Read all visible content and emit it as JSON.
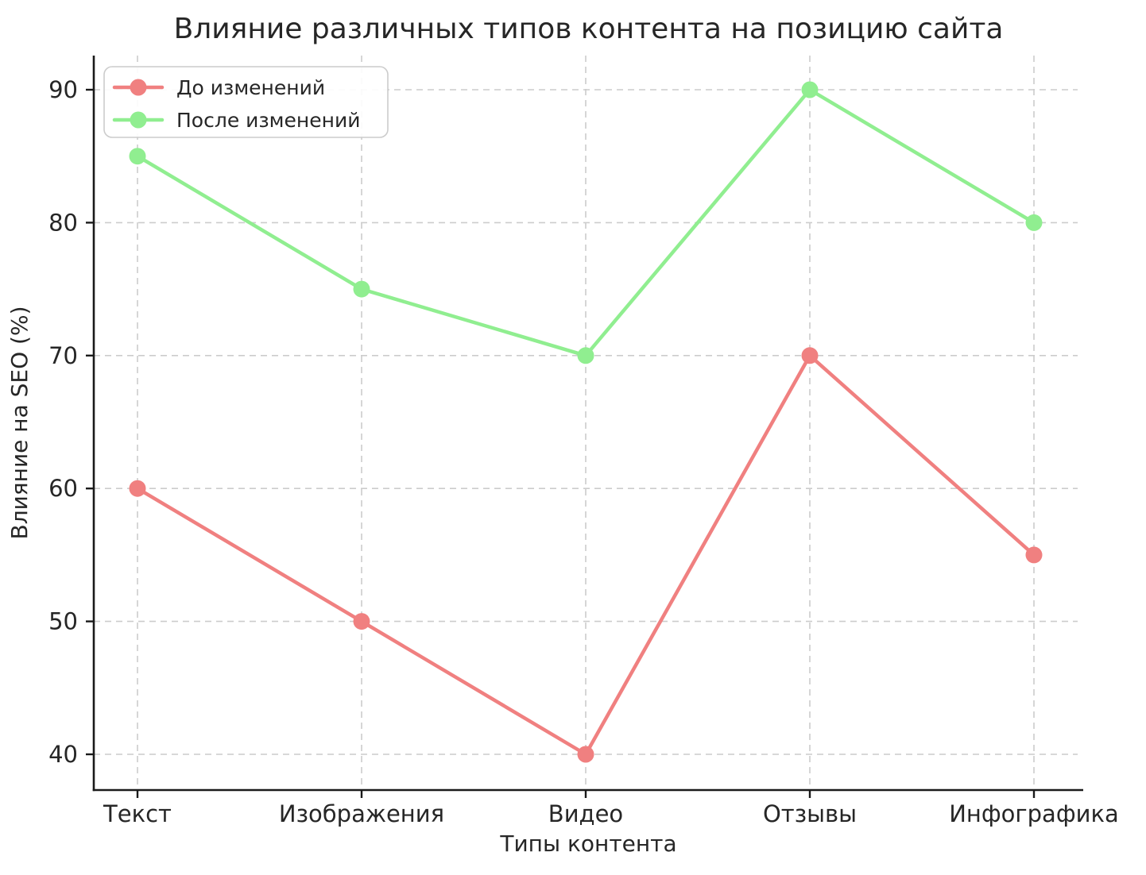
{
  "chart_data": {
    "type": "line",
    "title": "Влияние различных типов контента на позицию сайта",
    "xlabel": "Типы контента",
    "ylabel": "Влияние на SEO (%)",
    "categories": [
      "Текст",
      "Изображения",
      "Видео",
      "Отзывы",
      "Инфографика"
    ],
    "series": [
      {
        "name": "До изменений",
        "color": "#F08080",
        "values": [
          60,
          50,
          40,
          70,
          55
        ]
      },
      {
        "name": "После изменений",
        "color": "#90EE90",
        "values": [
          85,
          75,
          70,
          90,
          80
        ]
      }
    ],
    "yticks": [
      40,
      50,
      60,
      70,
      80,
      90
    ],
    "ylim": [
      37.3,
      92.5
    ],
    "grid": true,
    "grid_style": "dashed",
    "grid_color": "#cccccc",
    "legend_position": "upper left",
    "marker": "circle",
    "background": "#ffffff",
    "text_color": "#262626",
    "title_color": "#3a3a3a",
    "axis_color": "#1a1a1a"
  }
}
